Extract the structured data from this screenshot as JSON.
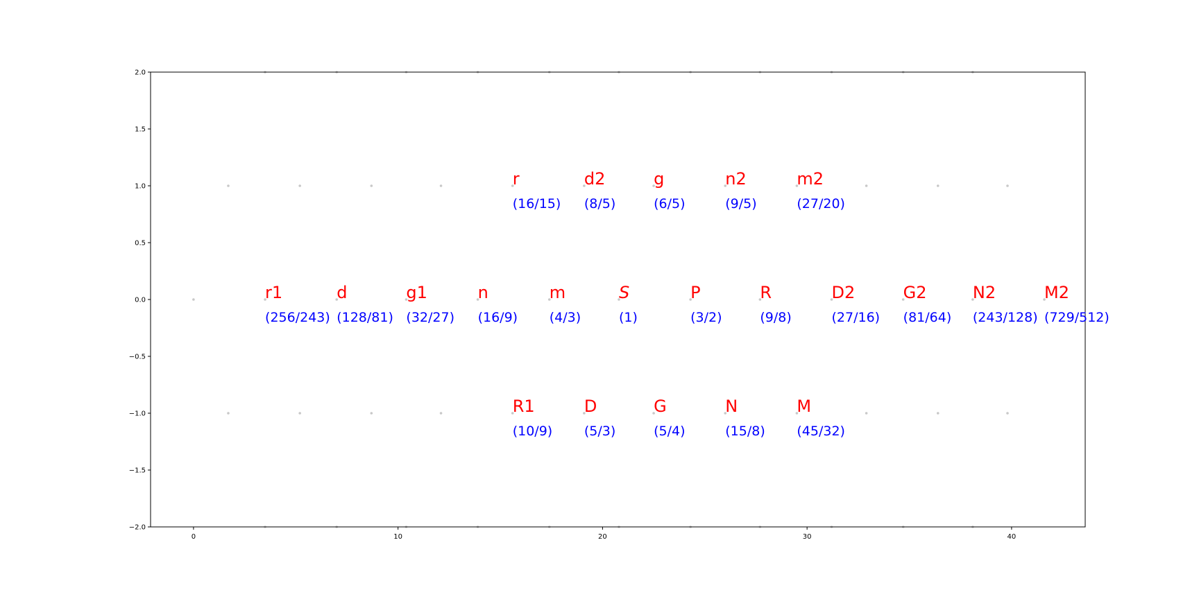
{
  "chart_data": {
    "type": "scatter",
    "title": "",
    "xlabel": "",
    "ylabel": "",
    "xlim": [
      -2.1,
      43.6
    ],
    "ylim": [
      -2.0,
      2.0
    ],
    "grid": false,
    "x_ticks": [
      0,
      10,
      20,
      30,
      40
    ],
    "x_tick_labels": [
      "0",
      "10",
      "20",
      "30",
      "40"
    ],
    "y_ticks": [
      2.0,
      1.5,
      1.0,
      0.5,
      0.0,
      -0.5,
      -1.0,
      -1.5,
      -2.0
    ],
    "y_tick_labels": [
      "2.0",
      "1.5",
      "1.0",
      "0.5",
      "0.0",
      "−0.5",
      "−1.0",
      "−1.5",
      "−2.0"
    ],
    "colors": {
      "note": "#ff0000",
      "ratio": "#0000ff",
      "marker": "#c8c8c8",
      "axes": "#000000"
    },
    "labeled_points": [
      {
        "x": 3.5,
        "y": 0,
        "note": "r1",
        "ratio": "(256/243)"
      },
      {
        "x": 7.0,
        "y": 0,
        "note": "d",
        "ratio": "(128/81)"
      },
      {
        "x": 10.4,
        "y": 0,
        "note": "g1",
        "ratio": "(32/27)"
      },
      {
        "x": 13.9,
        "y": 0,
        "note": "n",
        "ratio": "(16/9)"
      },
      {
        "x": 17.4,
        "y": 0,
        "note": "m",
        "ratio": "(4/3)"
      },
      {
        "x": 20.8,
        "y": 0,
        "note": "S",
        "ratio": "(1)",
        "italic": true
      },
      {
        "x": 24.3,
        "y": 0,
        "note": "P",
        "ratio": "(3/2)"
      },
      {
        "x": 27.7,
        "y": 0,
        "note": "R",
        "ratio": "(9/8)"
      },
      {
        "x": 31.2,
        "y": 0,
        "note": "D2",
        "ratio": "(27/16)"
      },
      {
        "x": 34.7,
        "y": 0,
        "note": "G2",
        "ratio": "(81/64)"
      },
      {
        "x": 38.1,
        "y": 0,
        "note": "N2",
        "ratio": "(243/128)"
      },
      {
        "x": 41.6,
        "y": 0,
        "note": "M2",
        "ratio": "(729/512)"
      },
      {
        "x": 15.6,
        "y": 1,
        "note": "r",
        "ratio": "(16/15)"
      },
      {
        "x": 19.1,
        "y": 1,
        "note": "d2",
        "ratio": "(8/5)"
      },
      {
        "x": 22.5,
        "y": 1,
        "note": "g",
        "ratio": "(6/5)"
      },
      {
        "x": 26.0,
        "y": 1,
        "note": "n2",
        "ratio": "(9/5)"
      },
      {
        "x": 29.5,
        "y": 1,
        "note": "m2",
        "ratio": "(27/20)"
      },
      {
        "x": 15.6,
        "y": -1,
        "note": "R1",
        "ratio": "(10/9)"
      },
      {
        "x": 19.1,
        "y": -1,
        "note": "D",
        "ratio": "(5/3)"
      },
      {
        "x": 22.5,
        "y": -1,
        "note": "G",
        "ratio": "(5/4)"
      },
      {
        "x": 26.0,
        "y": -1,
        "note": "N",
        "ratio": "(15/8)"
      },
      {
        "x": 29.5,
        "y": -1,
        "note": "M",
        "ratio": "(45/32)"
      }
    ],
    "unlabeled_points": [
      {
        "x": 0.0,
        "y": 0
      },
      {
        "x": 1.7,
        "y": 1
      },
      {
        "x": 5.2,
        "y": 1
      },
      {
        "x": 8.7,
        "y": 1
      },
      {
        "x": 12.1,
        "y": 1
      },
      {
        "x": 32.9,
        "y": 1
      },
      {
        "x": 36.4,
        "y": 1
      },
      {
        "x": 39.8,
        "y": 1
      },
      {
        "x": 1.7,
        "y": -1
      },
      {
        "x": 5.2,
        "y": -1
      },
      {
        "x": 8.7,
        "y": -1
      },
      {
        "x": 12.1,
        "y": -1
      },
      {
        "x": 32.9,
        "y": -1
      },
      {
        "x": 36.4,
        "y": -1
      },
      {
        "x": 39.8,
        "y": -1
      },
      {
        "x": 3.5,
        "y": 2
      },
      {
        "x": 7.0,
        "y": 2
      },
      {
        "x": 10.4,
        "y": 2
      },
      {
        "x": 13.9,
        "y": 2
      },
      {
        "x": 17.4,
        "y": 2
      },
      {
        "x": 20.8,
        "y": 2
      },
      {
        "x": 24.3,
        "y": 2
      },
      {
        "x": 27.7,
        "y": 2
      },
      {
        "x": 31.2,
        "y": 2
      },
      {
        "x": 34.7,
        "y": 2
      },
      {
        "x": 38.1,
        "y": 2
      },
      {
        "x": 3.5,
        "y": -2
      },
      {
        "x": 7.0,
        "y": -2
      },
      {
        "x": 10.4,
        "y": -2
      },
      {
        "x": 13.9,
        "y": -2
      },
      {
        "x": 17.4,
        "y": -2
      },
      {
        "x": 20.8,
        "y": -2
      },
      {
        "x": 24.3,
        "y": -2
      },
      {
        "x": 27.7,
        "y": -2
      },
      {
        "x": 31.2,
        "y": -2
      },
      {
        "x": 34.7,
        "y": -2
      },
      {
        "x": 38.1,
        "y": -2
      }
    ]
  }
}
